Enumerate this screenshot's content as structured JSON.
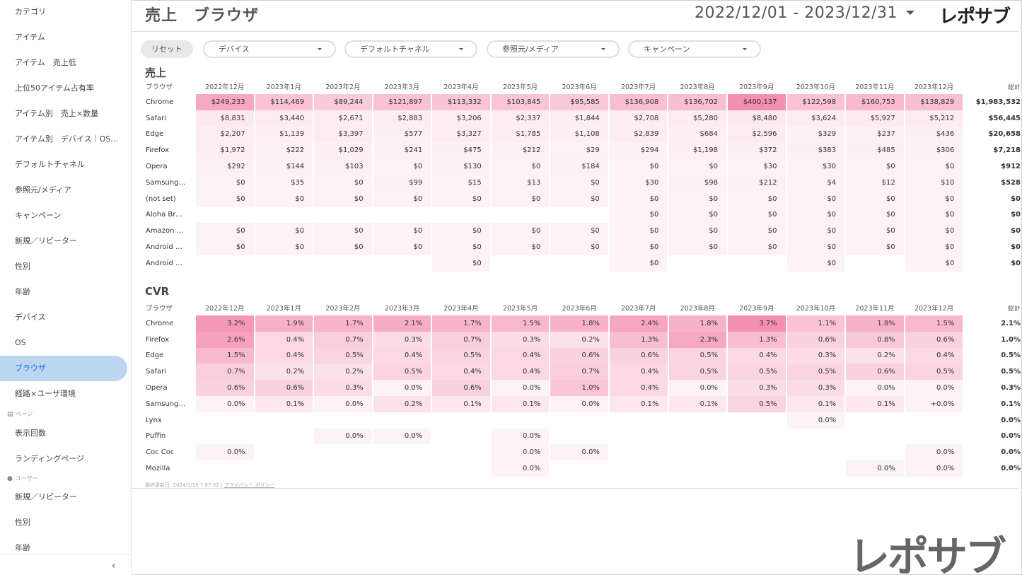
{
  "sidebar": {
    "items": [
      {
        "label": "カテゴリ"
      },
      {
        "label": "アイテム"
      },
      {
        "label": "アイテム　売上低"
      },
      {
        "label": "上位50アイテム占有率"
      },
      {
        "label": "アイテム別　売上×数量"
      },
      {
        "label": "アイテム別　デバイス｜OS…"
      },
      {
        "label": "デフォルトチャネル"
      },
      {
        "label": "参照元/メディア"
      },
      {
        "label": "キャンペーン"
      },
      {
        "label": "新規／リピーター"
      },
      {
        "label": "性別"
      },
      {
        "label": "年齢"
      },
      {
        "label": "デバイス"
      },
      {
        "label": "OS"
      },
      {
        "label": "ブラウザ",
        "active": true
      },
      {
        "label": "経路×ユーザ環境"
      }
    ],
    "section_page": "ページ",
    "page_items": [
      {
        "label": "表示回数"
      },
      {
        "label": "ランディングページ"
      }
    ],
    "section_user": "ユーザー",
    "user_items": [
      {
        "label": "新規／リピーター"
      },
      {
        "label": "性別"
      },
      {
        "label": "年齢"
      }
    ],
    "collapse_icon": "‹"
  },
  "header": {
    "title": "売上　ブラウザ",
    "date_range": "2022/12/01 - 2023/12/31",
    "logo": "レポサブ"
  },
  "filters": {
    "reset": "リセット",
    "device": "デバイス",
    "channel": "デフォルトチャネル",
    "source": "参照元/メディア",
    "campaign": "キャンペーン"
  },
  "sales": {
    "title": "売上",
    "headers": [
      "ブラウザ",
      "2022年12月",
      "2023年1月",
      "2023年2月",
      "2023年3月",
      "2023年4月",
      "2023年5月",
      "2023年6月",
      "2023年7月",
      "2023年8月",
      "2023年9月",
      "2023年10月",
      "2023年11月",
      "2023年12月",
      "総計"
    ],
    "rows": [
      {
        "label": "Chrome",
        "cells": [
          "$249,233",
          "$114,469",
          "$89,244",
          "$121,897",
          "$113,332",
          "$103,845",
          "$95,585",
          "$136,908",
          "$136,702",
          "$400,137",
          "$122,598",
          "$160,753",
          "$138,829"
        ],
        "total": "$1,983,532"
      },
      {
        "label": "Safari",
        "cells": [
          "$8,831",
          "$3,440",
          "$2,671",
          "$2,883",
          "$3,206",
          "$2,337",
          "$1,844",
          "$2,708",
          "$5,280",
          "$8,480",
          "$3,624",
          "$5,927",
          "$5,212"
        ],
        "total": "$56,445"
      },
      {
        "label": "Edge",
        "cells": [
          "$2,207",
          "$1,139",
          "$3,397",
          "$577",
          "$3,327",
          "$1,785",
          "$1,108",
          "$2,839",
          "$684",
          "$2,596",
          "$329",
          "$237",
          "$436"
        ],
        "total": "$20,658"
      },
      {
        "label": "Firefox",
        "cells": [
          "$1,972",
          "$222",
          "$1,029",
          "$241",
          "$475",
          "$212",
          "$29",
          "$294",
          "$1,198",
          "$372",
          "$383",
          "$485",
          "$306"
        ],
        "total": "$7,218"
      },
      {
        "label": "Opera",
        "cells": [
          "$292",
          "$144",
          "$103",
          "$0",
          "$130",
          "$0",
          "$184",
          "$0",
          "$0",
          "$30",
          "$30",
          "$0",
          "$0"
        ],
        "total": "$912"
      },
      {
        "label": "Samsung In…",
        "cells": [
          "$0",
          "$35",
          "$0",
          "$99",
          "$15",
          "$13",
          "$0",
          "$30",
          "$98",
          "$212",
          "$4",
          "$12",
          "$10"
        ],
        "total": "$528"
      },
      {
        "label": "(not set)",
        "cells": [
          "$0",
          "$0",
          "$0",
          "$0",
          "$0",
          "$0",
          "$0",
          "$0",
          "$0",
          "$0",
          "$0",
          "$0",
          "$0"
        ],
        "total": "$0"
      },
      {
        "label": "Aloha Brow…",
        "cells": [
          "",
          "",
          "",
          "",
          "",
          "",
          "",
          "$0",
          "$0",
          "$0",
          "$0",
          "$0",
          "$0"
        ],
        "total": "$0"
      },
      {
        "label": "Amazon Silk",
        "cells": [
          "$0",
          "$0",
          "$0",
          "$0",
          "$0",
          "$0",
          "$0",
          "$0",
          "$0",
          "$0",
          "$0",
          "$0",
          "$0"
        ],
        "total": "$0"
      },
      {
        "label": "Android Bro…",
        "cells": [
          "$0",
          "$0",
          "$0",
          "$0",
          "$0",
          "$0",
          "$0",
          "$0",
          "$0",
          "$0",
          "$0",
          "$0",
          "$0"
        ],
        "total": "$0"
      },
      {
        "label": "Android Ru…",
        "cells": [
          "",
          "",
          "",
          "",
          "$0",
          "",
          "",
          "$0",
          "",
          "",
          "$0",
          "",
          "$0"
        ],
        "total": "$0"
      }
    ]
  },
  "cvr": {
    "title": "CVR",
    "headers": [
      "ブラウザ",
      "2022年12月",
      "2023年1月",
      "2023年2月",
      "2023年3月",
      "2023年4月",
      "2023年5月",
      "2023年6月",
      "2023年7月",
      "2023年8月",
      "2023年9月",
      "2023年10月",
      "2023年11月",
      "2023年12月",
      "総計"
    ],
    "rows": [
      {
        "label": "Chrome",
        "cells": [
          "3.2%",
          "1.9%",
          "1.7%",
          "2.1%",
          "1.7%",
          "1.5%",
          "1.8%",
          "2.4%",
          "1.8%",
          "3.7%",
          "1.1%",
          "1.8%",
          "1.5%"
        ],
        "total": "2.1%"
      },
      {
        "label": "Firefox",
        "cells": [
          "2.6%",
          "0.4%",
          "0.7%",
          "0.3%",
          "0.7%",
          "0.3%",
          "0.2%",
          "1.3%",
          "2.3%",
          "1.3%",
          "0.6%",
          "0.8%",
          "0.6%"
        ],
        "total": "1.0%"
      },
      {
        "label": "Edge",
        "cells": [
          "1.5%",
          "0.4%",
          "0.5%",
          "0.4%",
          "0.5%",
          "0.4%",
          "0.6%",
          "0.6%",
          "0.5%",
          "0.4%",
          "0.3%",
          "0.2%",
          "0.4%"
        ],
        "total": "0.5%"
      },
      {
        "label": "Safari",
        "cells": [
          "0.7%",
          "0.2%",
          "0.2%",
          "0.5%",
          "0.4%",
          "0.4%",
          "0.7%",
          "0.4%",
          "0.5%",
          "0.5%",
          "0.5%",
          "0.6%",
          "0.5%"
        ],
        "total": "0.5%"
      },
      {
        "label": "Opera",
        "cells": [
          "0.6%",
          "0.6%",
          "0.3%",
          "0.0%",
          "0.6%",
          "0.0%",
          "1.0%",
          "0.4%",
          "0.0%",
          "0.3%",
          "0.3%",
          "0.0%",
          "0.0%"
        ],
        "total": "0.3%"
      },
      {
        "label": "Samsung In…",
        "cells": [
          "0.0%",
          "0.1%",
          "0.0%",
          "0.2%",
          "0.1%",
          "0.1%",
          "0.0%",
          "0.1%",
          "0.1%",
          "0.5%",
          "0.1%",
          "0.1%",
          "+0.0%"
        ],
        "total": "0.1%"
      },
      {
        "label": "Lynx",
        "cells": [
          "",
          "",
          "",
          "",
          "",
          "",
          "",
          "",
          "",
          "",
          "0.0%",
          "",
          ""
        ],
        "total": "0.0%"
      },
      {
        "label": "Puffin",
        "cells": [
          "",
          "",
          "0.0%",
          "0.0%",
          "",
          "0.0%",
          "",
          "",
          "",
          "",
          "",
          "",
          ""
        ],
        "total": "0.0%"
      },
      {
        "label": "Coc Coc",
        "cells": [
          "0.0%",
          "",
          "",
          "",
          "",
          "0.0%",
          "0.0%",
          "",
          "",
          "",
          "",
          "",
          "0.0%"
        ],
        "total": "0.0%"
      },
      {
        "label": "Mozilla",
        "cells": [
          "",
          "",
          "",
          "",
          "",
          "0.0%",
          "",
          "",
          "",
          "",
          "",
          "0.0%",
          "0.0%"
        ],
        "total": "0.0%"
      }
    ]
  },
  "footer": {
    "updated": "最終更新日: 2024/1/19 7:07:02",
    "separator": "|",
    "privacy": "プライバシー ポリシー"
  },
  "logo_bottom": "レポサブ",
  "colors": {
    "accent_active": "#bcd6f0",
    "heat_max": "#f48fb1",
    "heat_min": "#fdf2f6"
  }
}
